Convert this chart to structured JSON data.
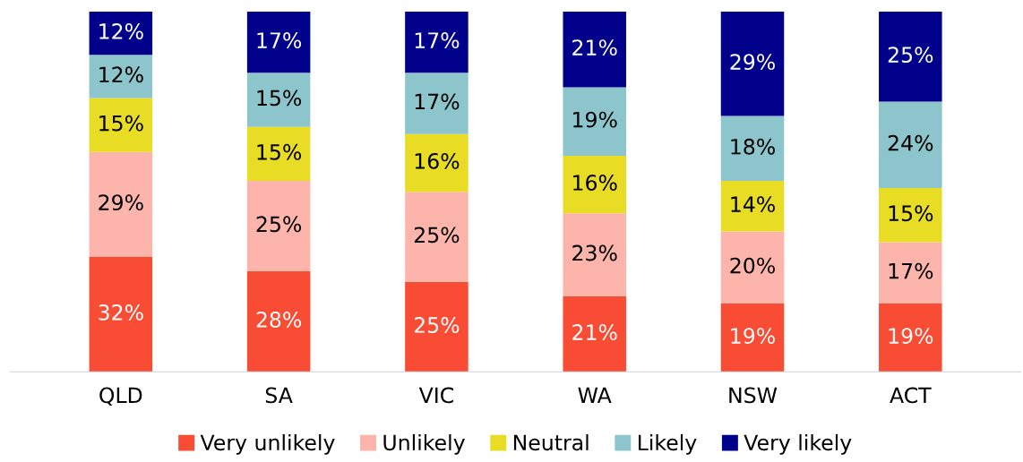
{
  "chart_data": {
    "type": "bar",
    "stacked": true,
    "legend": "bottom",
    "grid": false,
    "categories": [
      "QLD",
      "SA",
      "VIC",
      "WA",
      "NSW",
      "ACT"
    ],
    "series": [
      {
        "name": "Very unlikely",
        "color": "#f84c35",
        "values": [
          32,
          28,
          25,
          21,
          19,
          19
        ],
        "value_labels": [
          "32%",
          "28%",
          "25%",
          "21%",
          "19%",
          "19%"
        ]
      },
      {
        "name": "Unlikely",
        "color": "#fdb4aa",
        "values": [
          29,
          25,
          25,
          23,
          20,
          17
        ],
        "value_labels": [
          "29%",
          "25%",
          "25%",
          "23%",
          "20%",
          "17%"
        ]
      },
      {
        "name": "Neutral",
        "color": "#e8dc25",
        "values": [
          15,
          15,
          16,
          16,
          14,
          15
        ],
        "value_labels": [
          "15%",
          "15%",
          "16%",
          "16%",
          "14%",
          "15%"
        ]
      },
      {
        "name": "Likely",
        "color": "#8cc5cb",
        "values": [
          12,
          15,
          17,
          19,
          18,
          24
        ],
        "value_labels": [
          "12%",
          "15%",
          "17%",
          "19%",
          "18%",
          "24%"
        ]
      },
      {
        "name": "Very likely",
        "color": "#00008b",
        "values": [
          12,
          17,
          17,
          21,
          29,
          25
        ],
        "value_labels": [
          "12%",
          "17%",
          "17%",
          "21%",
          "29%",
          "25%"
        ]
      }
    ]
  }
}
